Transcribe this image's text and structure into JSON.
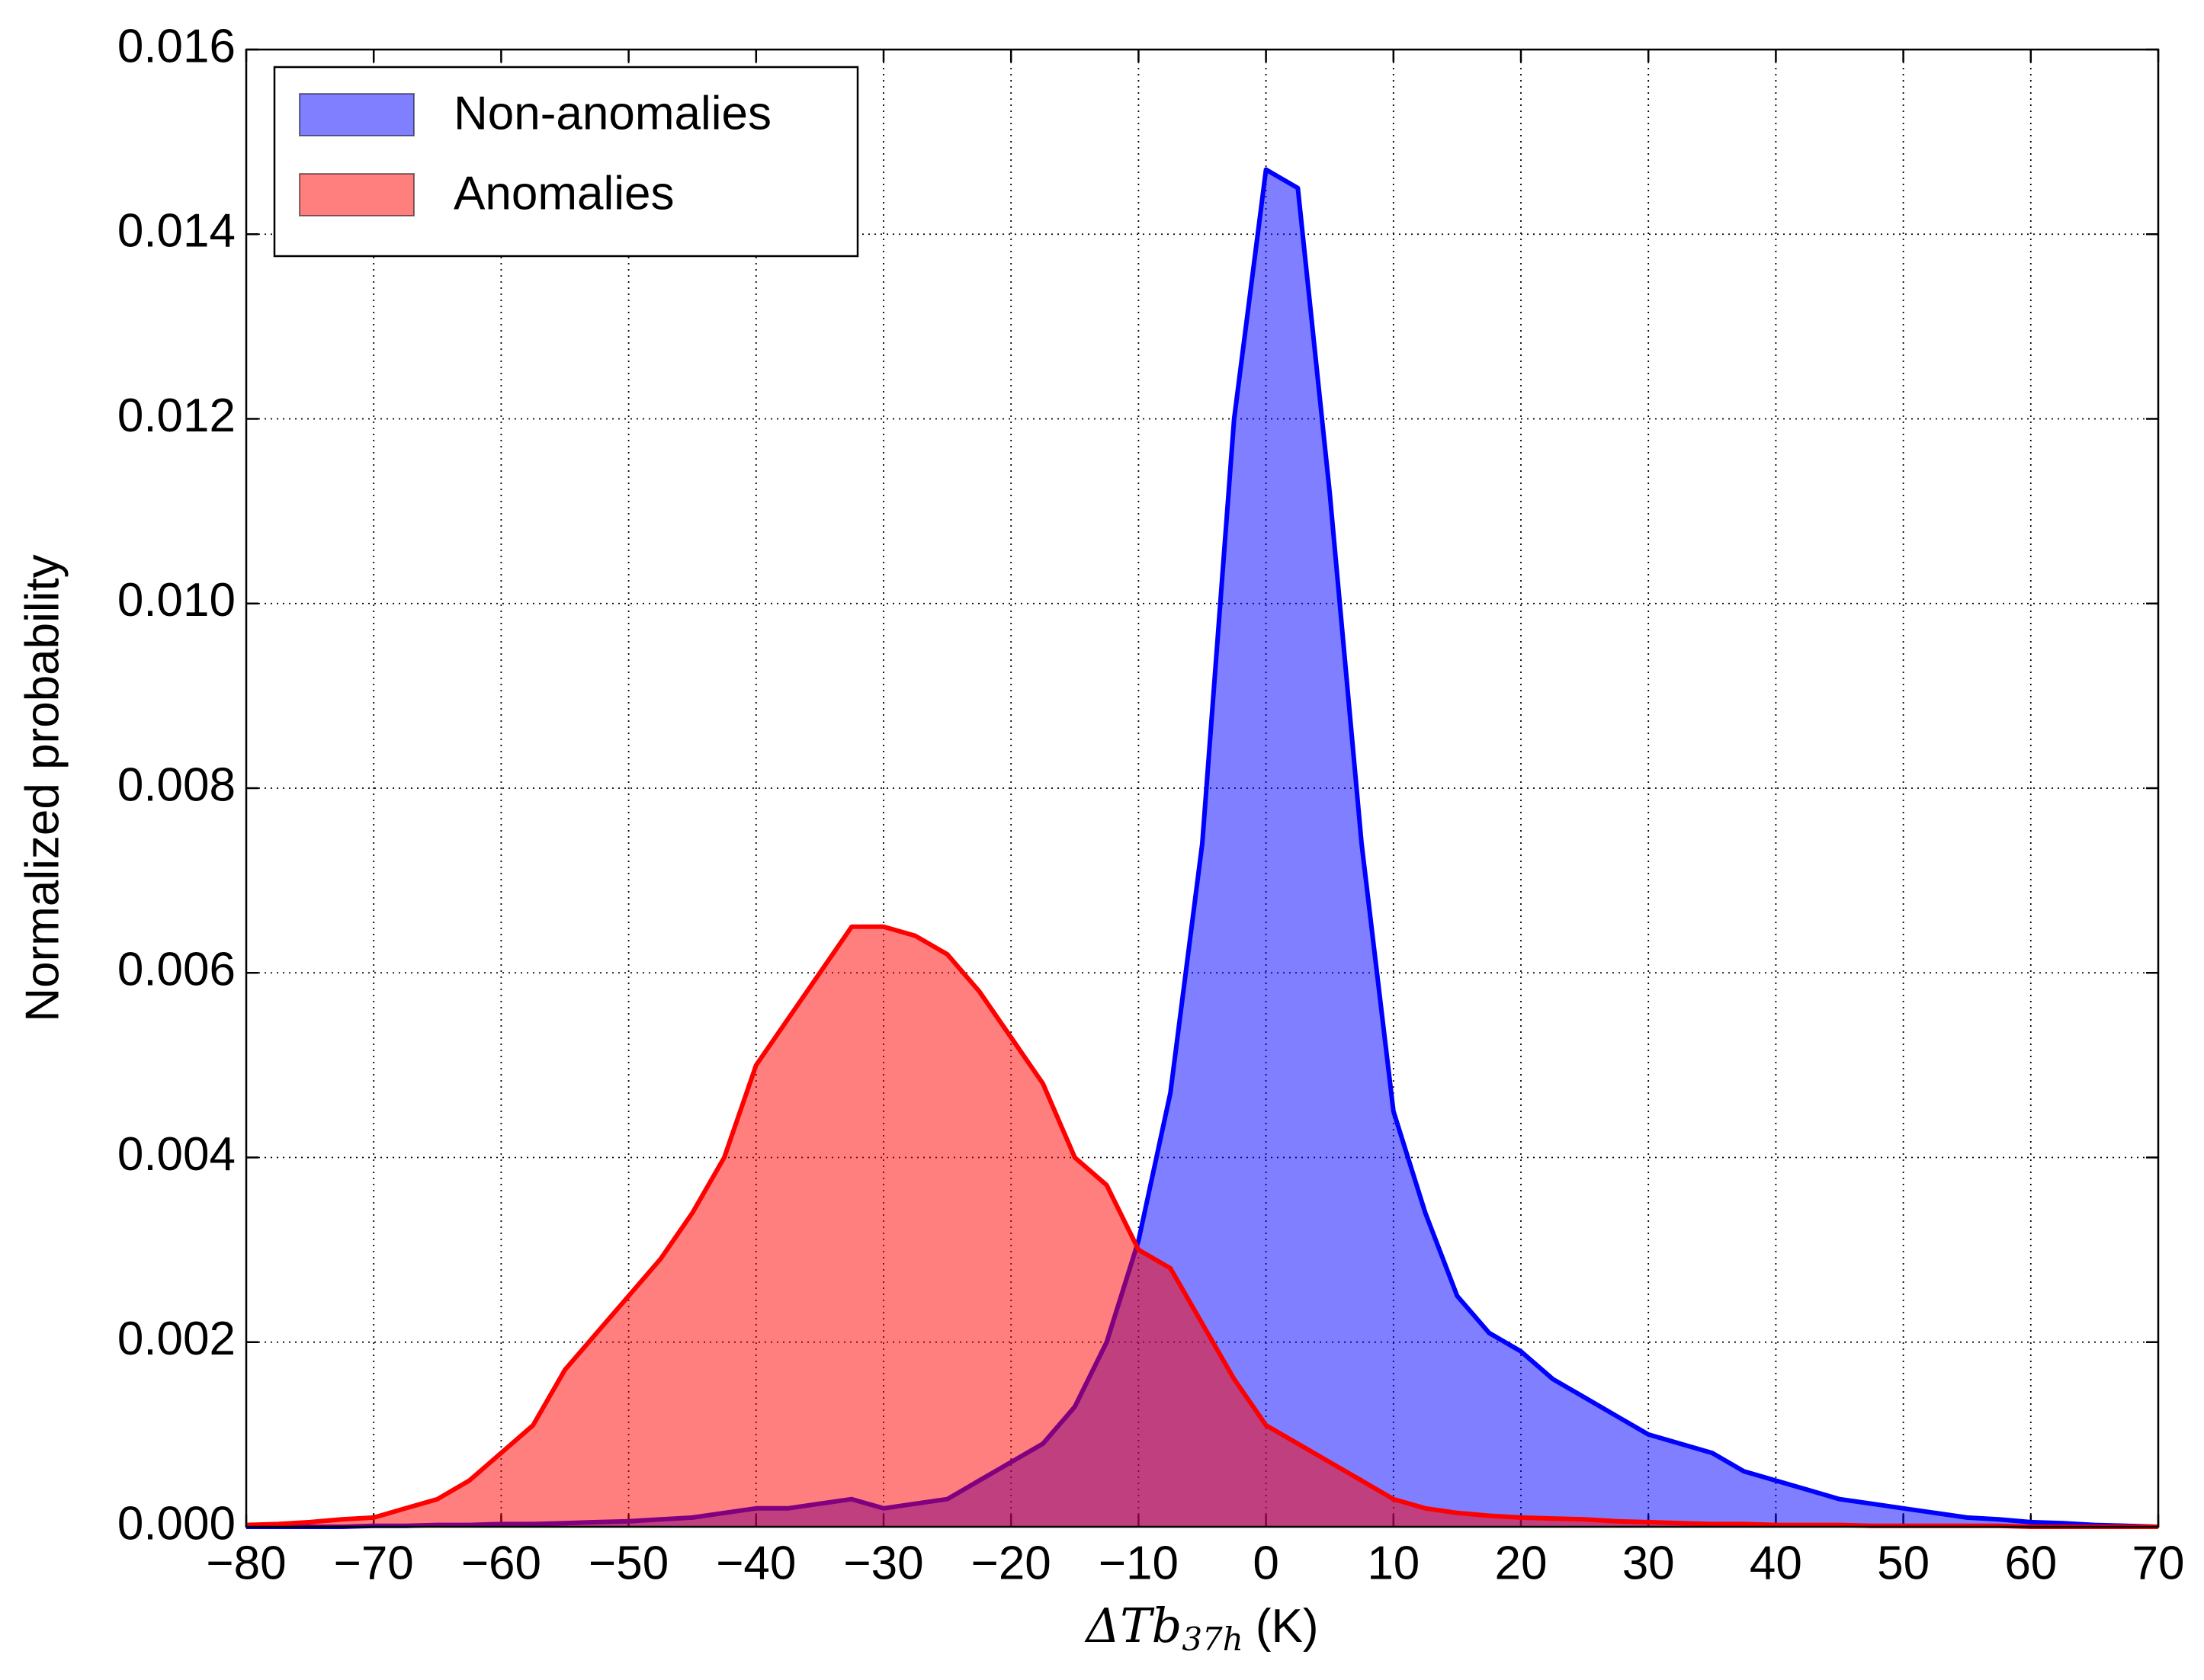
{
  "chart_data": {
    "type": "area",
    "y_label": "Normalized probability",
    "x_label": {
      "symbol": "ΔTb",
      "subscript": "37h",
      "unit": "(K)"
    },
    "x": [
      -80,
      -77.5,
      -75,
      -72.5,
      -70,
      -67.5,
      -65,
      -62.5,
      -60,
      -57.5,
      -55,
      -52.5,
      -50,
      -47.5,
      -45,
      -42.5,
      -40,
      -37.5,
      -35,
      -32.5,
      -30,
      -27.5,
      -25,
      -22.5,
      -20,
      -17.5,
      -15,
      -12.5,
      -10,
      -7.5,
      -5,
      -2.5,
      0,
      2.5,
      5,
      7.5,
      10,
      12.5,
      15,
      17.5,
      20,
      22.5,
      25,
      27.5,
      30,
      32.5,
      35,
      37.5,
      40,
      42.5,
      45,
      47.5,
      50,
      52.5,
      55,
      57.5,
      60,
      62.5,
      65,
      67.5,
      70
    ],
    "series": [
      {
        "name": "Non-anomalies",
        "color": "#0000ff",
        "values": [
          0,
          0,
          0,
          0,
          1e-05,
          1e-05,
          2e-05,
          2e-05,
          3e-05,
          3e-05,
          4e-05,
          5e-05,
          6e-05,
          8e-05,
          0.0001,
          0.00015,
          0.0002,
          0.0002,
          0.00025,
          0.0003,
          0.0002,
          0.00025,
          0.0003,
          0.0005,
          0.0007,
          0.0009,
          0.0013,
          0.002,
          0.0031,
          0.0047,
          0.0074,
          0.012,
          0.0147,
          0.0145,
          0.0112,
          0.0074,
          0.0045,
          0.0034,
          0.0025,
          0.0021,
          0.0019,
          0.0016,
          0.0014,
          0.0012,
          0.001,
          0.0009,
          0.0008,
          0.0006,
          0.0005,
          0.0004,
          0.0003,
          0.00025,
          0.0002,
          0.00015,
          0.0001,
          8e-05,
          5e-05,
          4e-05,
          2e-05,
          1e-05,
          0
        ]
      },
      {
        "name": "Anomalies",
        "color": "#ff0000",
        "values": [
          2e-05,
          3e-05,
          5e-05,
          8e-05,
          0.0001,
          0.0002,
          0.0003,
          0.0005,
          0.0008,
          0.0011,
          0.0017,
          0.0021,
          0.0025,
          0.0029,
          0.0034,
          0.004,
          0.005,
          0.0055,
          0.006,
          0.0065,
          0.0065,
          0.0064,
          0.0062,
          0.0058,
          0.0053,
          0.0048,
          0.004,
          0.0037,
          0.003,
          0.0028,
          0.0022,
          0.0016,
          0.0011,
          0.0009,
          0.0007,
          0.0005,
          0.0003,
          0.0002,
          0.00015,
          0.00012,
          0.0001,
          9e-05,
          8e-05,
          6e-05,
          5e-05,
          4e-05,
          3e-05,
          3e-05,
          2e-05,
          2e-05,
          2e-05,
          1e-05,
          1e-05,
          1e-05,
          1e-05,
          1e-05,
          0,
          0,
          0,
          0,
          0
        ]
      }
    ],
    "xlim": [
      -80,
      70
    ],
    "ylim": [
      0,
      0.016
    ],
    "xticks": [
      {
        "value": -80,
        "label": "−80"
      },
      {
        "value": -70,
        "label": "−70"
      },
      {
        "value": -60,
        "label": "−60"
      },
      {
        "value": -50,
        "label": "−50"
      },
      {
        "value": -40,
        "label": "−40"
      },
      {
        "value": -30,
        "label": "−30"
      },
      {
        "value": -20,
        "label": "−20"
      },
      {
        "value": -10,
        "label": "−10"
      },
      0,
      10,
      20,
      30,
      40,
      50,
      60,
      70
    ],
    "yticks": [
      {
        "value": 0,
        "label": "0.000"
      },
      {
        "value": 0.002,
        "label": "0.002"
      },
      {
        "value": 0.004,
        "label": "0.004"
      },
      {
        "value": 0.006,
        "label": "0.006"
      },
      {
        "value": 0.008,
        "label": "0.008"
      },
      {
        "value": 0.01,
        "label": "0.010"
      },
      {
        "value": 0.012,
        "label": "0.012"
      },
      {
        "value": 0.014,
        "label": "0.014"
      },
      {
        "value": 0.016,
        "label": "0.016"
      }
    ],
    "grid": true,
    "legend": "upper left"
  }
}
